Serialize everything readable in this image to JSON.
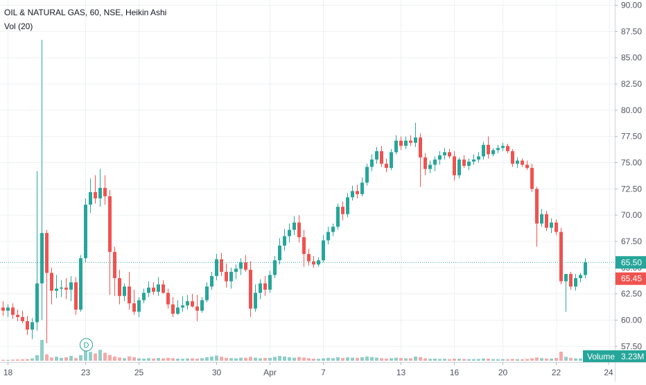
{
  "header": {
    "title": "OIL & NATURAL GAS, 60, NSE, Heikin Ashi",
    "indicator": "Vol (20)"
  },
  "price_axis": {
    "ticks": [
      "90.00",
      "87.50",
      "85.00",
      "82.50",
      "80.00",
      "77.50",
      "75.00",
      "72.50",
      "70.00",
      "67.50",
      "65.00",
      "62.50",
      "60.00",
      "57.50"
    ],
    "last_price_label": "65.50",
    "last_price": 65.5,
    "second_price_label": "65.45",
    "second_price": 65.45
  },
  "time_axis": {
    "labels": [
      "18",
      "23",
      "25",
      "30",
      "Apr",
      "7",
      "13",
      "16",
      "20",
      "22",
      "24"
    ]
  },
  "volume_badge": {
    "label": "Volume",
    "value": "3.23M"
  },
  "event_marker": {
    "label": "D"
  },
  "colors": {
    "up": "#26a69a",
    "down": "#ef5350",
    "up_volume": "#8fcec7",
    "down_volume": "#f5a9a8",
    "grid": "#eef0f3",
    "price_line": "#26a69a"
  },
  "chart_data": {
    "type": "candlestick",
    "title": "OIL & NATURAL GAS, 60, NSE, Heikin Ashi",
    "ylim": [
      56,
      90.5
    ],
    "y_ticks": [
      57.5,
      60,
      62.5,
      65,
      67.5,
      70,
      72.5,
      75,
      77.5,
      80,
      82.5,
      85,
      87.5,
      90
    ],
    "x_tick_labels": [
      "18",
      "23",
      "25",
      "30",
      "Apr",
      "7",
      "13",
      "16",
      "20",
      "22",
      "24"
    ],
    "grid": true,
    "series": [
      {
        "name": "Price",
        "candles": [
          [
            61.2,
            61.8,
            60.4,
            60.9
          ],
          [
            60.9,
            61.5,
            60.3,
            61.2
          ],
          [
            61.2,
            61.6,
            60.1,
            60.5
          ],
          [
            60.5,
            61.0,
            59.9,
            60.3
          ],
          [
            60.3,
            60.9,
            59.7,
            59.9
          ],
          [
            59.9,
            60.4,
            58.6,
            59.1
          ],
          [
            59.1,
            60.2,
            58.2,
            59.8
          ],
          [
            59.8,
            74.2,
            59.0,
            63.5
          ],
          [
            63.5,
            86.7,
            60.0,
            68.3
          ],
          [
            68.3,
            68.6,
            57.8,
            64.5
          ],
          [
            64.5,
            65.0,
            61.5,
            62.8
          ],
          [
            62.8,
            64.3,
            62.1,
            63.0
          ],
          [
            63.0,
            63.8,
            62.2,
            63.1
          ],
          [
            63.1,
            64.0,
            62.0,
            62.9
          ],
          [
            62.9,
            64.2,
            61.8,
            63.6
          ],
          [
            63.6,
            64.1,
            60.5,
            61.0
          ],
          [
            61.0,
            66.2,
            60.8,
            65.9
          ],
          [
            65.9,
            71.6,
            65.5,
            71.0
          ],
          [
            71.0,
            73.5,
            70.2,
            72.2
          ],
          [
            72.2,
            73.8,
            71.1,
            71.6
          ],
          [
            71.6,
            74.4,
            70.8,
            72.6
          ],
          [
            72.6,
            73.8,
            71.0,
            71.8
          ],
          [
            71.8,
            72.4,
            62.4,
            66.5
          ],
          [
            66.5,
            67.0,
            62.3,
            64.0
          ],
          [
            64.0,
            64.8,
            61.5,
            62.3
          ],
          [
            62.3,
            63.5,
            61.8,
            63.2
          ],
          [
            63.2,
            64.6,
            61.0,
            61.6
          ],
          [
            61.6,
            62.9,
            60.5,
            60.8
          ],
          [
            60.8,
            62.2,
            60.3,
            61.9
          ],
          [
            61.9,
            63.0,
            61.6,
            62.6
          ],
          [
            62.6,
            63.7,
            62.2,
            63.1
          ],
          [
            63.1,
            63.6,
            62.4,
            62.7
          ],
          [
            62.7,
            64.1,
            62.3,
            63.4
          ],
          [
            63.4,
            63.8,
            62.5,
            62.6
          ],
          [
            62.6,
            63.0,
            61.1,
            61.5
          ],
          [
            61.5,
            62.2,
            60.3,
            60.6
          ],
          [
            60.6,
            61.9,
            60.5,
            61.2
          ],
          [
            61.2,
            62.3,
            60.8,
            61.4
          ],
          [
            61.4,
            62.4,
            61.0,
            61.8
          ],
          [
            61.8,
            62.5,
            61.2,
            61.3
          ],
          [
            61.3,
            62.4,
            59.9,
            60.9
          ],
          [
            60.9,
            62.2,
            60.7,
            61.9
          ],
          [
            61.9,
            63.6,
            61.7,
            63.2
          ],
          [
            63.2,
            64.6,
            62.9,
            64.2
          ],
          [
            64.2,
            66.3,
            63.8,
            65.8
          ],
          [
            65.8,
            66.4,
            64.2,
            64.6
          ],
          [
            64.6,
            65.4,
            63.1,
            63.7
          ],
          [
            63.7,
            65.0,
            63.0,
            64.6
          ],
          [
            64.6,
            65.3,
            63.9,
            64.9
          ],
          [
            64.9,
            65.9,
            64.3,
            65.5
          ],
          [
            65.5,
            66.2,
            64.6,
            64.8
          ],
          [
            64.8,
            65.6,
            60.3,
            61.1
          ],
          [
            61.1,
            63.4,
            60.8,
            62.6
          ],
          [
            62.6,
            63.9,
            62.0,
            63.5
          ],
          [
            63.5,
            64.2,
            62.3,
            62.9
          ],
          [
            62.9,
            64.7,
            62.6,
            64.3
          ],
          [
            64.3,
            66.1,
            64.0,
            65.7
          ],
          [
            65.7,
            67.8,
            65.3,
            67.1
          ],
          [
            67.1,
            68.7,
            66.6,
            68.0
          ],
          [
            68.0,
            69.2,
            67.4,
            68.6
          ],
          [
            68.6,
            69.9,
            68.1,
            69.3
          ],
          [
            69.3,
            70.0,
            67.4,
            67.9
          ],
          [
            67.9,
            68.6,
            65.1,
            66.3
          ],
          [
            66.3,
            66.8,
            65.2,
            65.6
          ],
          [
            65.6,
            66.1,
            65.0,
            65.3
          ],
          [
            65.3,
            66.0,
            65.1,
            65.7
          ],
          [
            65.7,
            68.1,
            65.5,
            67.6
          ],
          [
            67.6,
            68.9,
            67.2,
            68.4
          ],
          [
            68.4,
            69.2,
            68.0,
            68.9
          ],
          [
            68.9,
            71.1,
            68.6,
            70.8
          ],
          [
            70.8,
            71.3,
            69.5,
            70.1
          ],
          [
            70.1,
            72.1,
            69.8,
            71.7
          ],
          [
            71.7,
            72.8,
            71.4,
            72.3
          ],
          [
            72.3,
            72.9,
            71.6,
            72.0
          ],
          [
            72.0,
            73.6,
            71.8,
            73.1
          ],
          [
            73.1,
            74.9,
            72.8,
            74.6
          ],
          [
            74.6,
            75.8,
            74.2,
            75.3
          ],
          [
            75.3,
            76.5,
            74.9,
            76.1
          ],
          [
            76.1,
            76.6,
            74.6,
            74.9
          ],
          [
            74.9,
            75.4,
            74.1,
            74.5
          ],
          [
            74.5,
            76.3,
            74.3,
            76.0
          ],
          [
            76.0,
            77.6,
            75.8,
            77.1
          ],
          [
            77.1,
            77.5,
            76.2,
            76.6
          ],
          [
            76.6,
            77.5,
            76.3,
            77.1
          ],
          [
            77.1,
            77.6,
            76.6,
            76.9
          ],
          [
            76.9,
            78.8,
            76.5,
            77.4
          ],
          [
            77.4,
            77.8,
            72.7,
            75.5
          ],
          [
            75.5,
            75.9,
            73.8,
            74.4
          ],
          [
            74.4,
            75.2,
            74.0,
            74.8
          ],
          [
            74.8,
            75.6,
            74.2,
            75.3
          ],
          [
            75.3,
            76.1,
            74.8,
            75.7
          ],
          [
            75.7,
            76.4,
            75.3,
            76.0
          ],
          [
            76.0,
            76.3,
            75.4,
            75.6
          ],
          [
            75.6,
            76.1,
            73.3,
            73.8
          ],
          [
            73.8,
            75.5,
            73.5,
            75.3
          ],
          [
            75.3,
            75.7,
            74.5,
            74.7
          ],
          [
            74.7,
            75.4,
            74.3,
            75.1
          ],
          [
            75.1,
            75.8,
            74.8,
            75.3
          ],
          [
            75.3,
            76.0,
            75.0,
            75.6
          ],
          [
            75.6,
            77.0,
            75.3,
            76.7
          ],
          [
            76.7,
            77.5,
            75.4,
            75.8
          ],
          [
            75.8,
            76.4,
            75.6,
            76.2
          ],
          [
            76.2,
            76.7,
            75.9,
            76.4
          ],
          [
            76.4,
            76.9,
            76.1,
            76.6
          ],
          [
            76.6,
            76.8,
            75.9,
            76.1
          ],
          [
            76.1,
            76.3,
            74.6,
            74.9
          ],
          [
            74.9,
            75.5,
            74.5,
            75.2
          ],
          [
            75.2,
            75.4,
            74.6,
            74.8
          ],
          [
            74.8,
            75.2,
            74.3,
            74.5
          ],
          [
            74.5,
            74.9,
            72.2,
            72.5
          ],
          [
            72.5,
            72.7,
            67.0,
            69.2
          ],
          [
            69.2,
            70.6,
            68.9,
            70.1
          ],
          [
            70.1,
            70.4,
            68.5,
            68.8
          ],
          [
            68.8,
            69.7,
            68.3,
            69.3
          ],
          [
            69.3,
            69.6,
            68.1,
            68.4
          ],
          [
            68.4,
            68.8,
            63.4,
            63.7
          ],
          [
            63.7,
            64.2,
            60.8,
            64.4
          ],
          [
            64.4,
            64.6,
            62.9,
            63.2
          ],
          [
            63.2,
            64.4,
            62.8,
            64.0
          ],
          [
            64.0,
            64.5,
            63.6,
            64.3
          ],
          [
            64.3,
            65.9,
            64.0,
            65.5
          ]
        ]
      },
      {
        "name": "Volume",
        "values": [
          0.6,
          0.5,
          0.7,
          0.8,
          0.9,
          1.0,
          1.4,
          3.5,
          13.0,
          4.0,
          2.0,
          2.5,
          1.8,
          2.2,
          3.0,
          1.7,
          3.5,
          6.0,
          5.5,
          4.5,
          6.8,
          5.0,
          3.6,
          2.6,
          2.0,
          1.6,
          2.7,
          2.2,
          1.5,
          1.3,
          1.6,
          1.4,
          1.7,
          1.5,
          1.8,
          1.6,
          1.3,
          1.2,
          1.4,
          1.5,
          1.3,
          1.6,
          2.2,
          2.6,
          3.2,
          2.5,
          1.8,
          1.6,
          1.5,
          1.9,
          1.8,
          2.4,
          1.9,
          1.5,
          1.7,
          1.8,
          2.4,
          3.0,
          2.6,
          2.2,
          1.9,
          2.3,
          2.0,
          1.6,
          1.3,
          1.2,
          1.5,
          1.8,
          1.6,
          2.2,
          1.7,
          2.1,
          1.9,
          1.8,
          2.2,
          2.6,
          2.3,
          1.9,
          1.6,
          1.4,
          1.6,
          1.9,
          1.7,
          1.5,
          1.6,
          2.6,
          2.3,
          1.5,
          1.2,
          1.3,
          1.1,
          1.2,
          1.0,
          1.3,
          1.2,
          1.1,
          1.0,
          1.0,
          1.1,
          1.4,
          1.3,
          1.0,
          0.9,
          1.0,
          0.9,
          1.1,
          1.0,
          0.9,
          1.1,
          1.5,
          2.0,
          1.6,
          1.4,
          1.3,
          1.7,
          5.6,
          2.4,
          1.8,
          1.5,
          1.4,
          2.2
        ]
      }
    ]
  }
}
